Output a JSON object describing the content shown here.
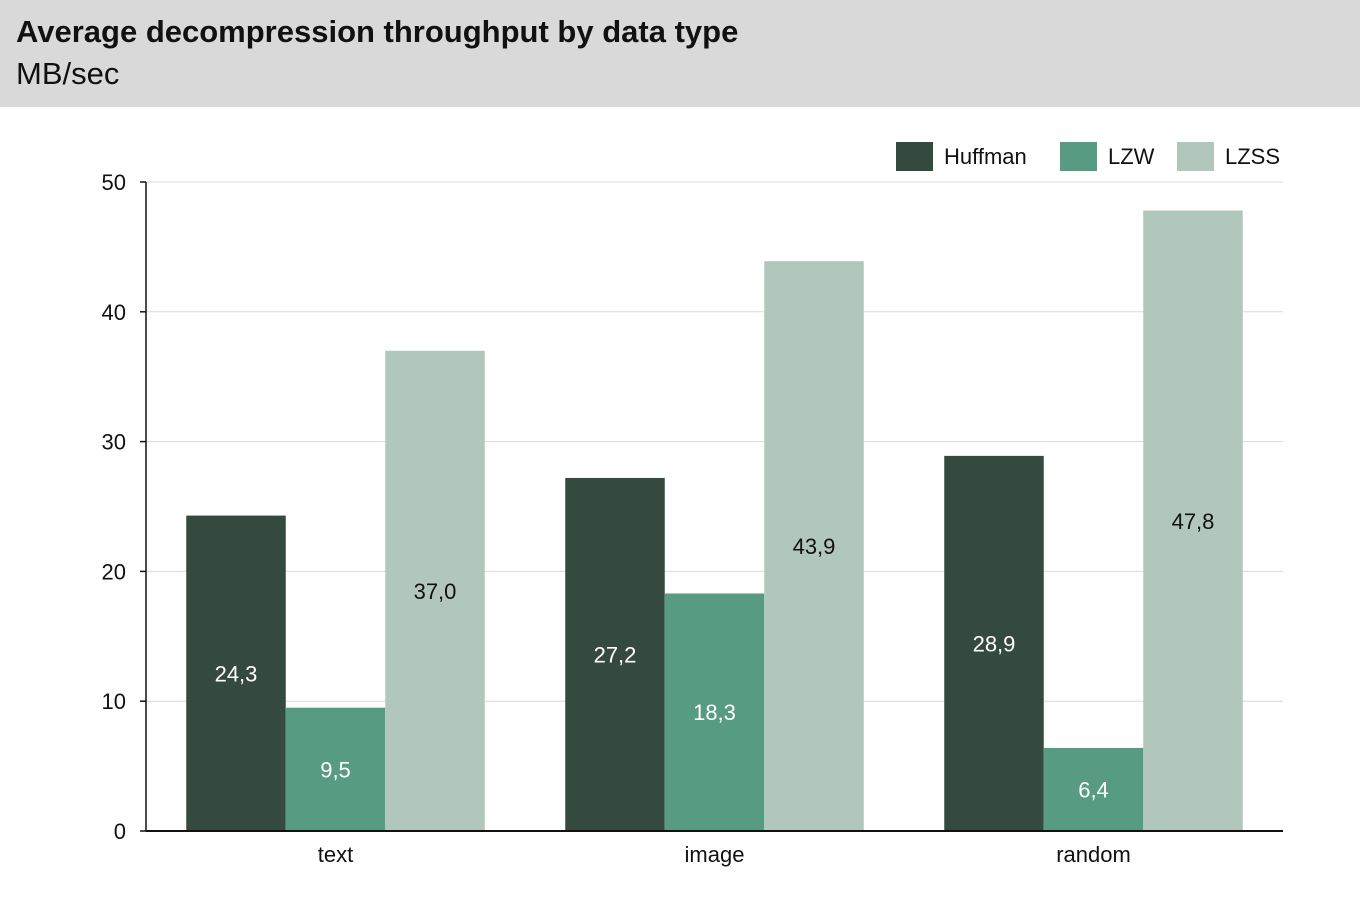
{
  "header": {
    "title": "Average decompression throughput by data type",
    "subtitle": "MB/sec"
  },
  "chart_data": {
    "type": "bar",
    "title": "Average decompression throughput by data type",
    "subtitle": "MB/sec",
    "xlabel": "",
    "ylabel": "",
    "categories": [
      "text",
      "image",
      "random"
    ],
    "series": [
      {
        "name": "Huffman",
        "color": "#354a3f",
        "label_color": "#ffffff",
        "values": [
          24.3,
          27.2,
          28.9
        ],
        "labels": [
          "24,3",
          "27,2",
          "28,9"
        ]
      },
      {
        "name": "LZW",
        "color": "#579b83",
        "label_color": "#ffffff",
        "values": [
          9.5,
          18.3,
          6.4
        ],
        "labels": [
          "9,5",
          "18,3",
          "6,4"
        ]
      },
      {
        "name": "LZSS",
        "color": "#b2c7bb",
        "label_color": "#111111",
        "values": [
          37.0,
          43.9,
          47.8
        ],
        "labels": [
          "37,0",
          "43,9",
          "47,8"
        ]
      }
    ],
    "ylim": [
      0,
      50
    ],
    "yticks": [
      0,
      10,
      20,
      30,
      40,
      50
    ],
    "grid": true,
    "legend_position": "top-right"
  }
}
